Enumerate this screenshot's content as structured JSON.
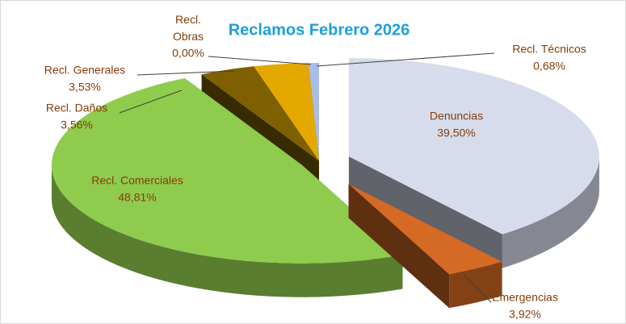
{
  "chart_data": {
    "type": "pie3d",
    "title": "Reclamos Febrero 2026",
    "categories": [
      "Denuncias",
      "Emergencias",
      "Recl. Comerciales",
      "Recl. Daños",
      "Recl. Generales",
      "Recl. Obras",
      "Recl. Técnicos"
    ],
    "values": [
      39.5,
      3.92,
      48.81,
      3.56,
      3.53,
      0.0,
      0.68
    ],
    "value_labels": [
      "39,50%",
      "3,92%",
      "48,81%",
      "3,56%",
      "3,53%",
      "0,00%",
      "0,68%"
    ],
    "colors": [
      "#d6dcec",
      "#d46a24",
      "#8fcc4e",
      "#7f6000",
      "#e4a900",
      "#4a86c5",
      "#a9bde6"
    ]
  }
}
